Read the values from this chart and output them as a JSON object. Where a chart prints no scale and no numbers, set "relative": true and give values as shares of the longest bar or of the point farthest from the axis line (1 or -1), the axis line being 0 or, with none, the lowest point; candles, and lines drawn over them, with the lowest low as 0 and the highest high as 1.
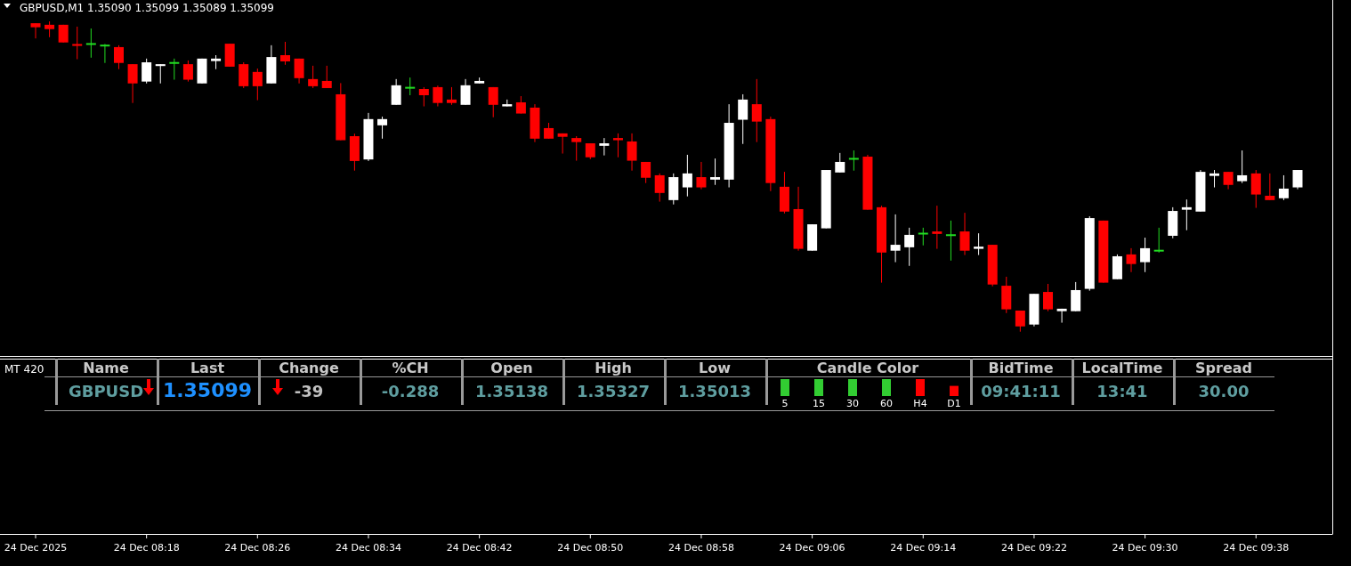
{
  "chart_data": [
    {
      "type": "candlestick",
      "title": "GBPUSD,M1  1.35090 1.35099 1.35089 1.35099",
      "relative": true,
      "categories": [
        "24 Dec 2025",
        null,
        null,
        null,
        null,
        null,
        null,
        null,
        "24 Dec 08:18",
        null,
        null,
        null,
        null,
        null,
        null,
        null,
        "24 Dec 08:26",
        null,
        null,
        null,
        null,
        null,
        null,
        null,
        "24 Dec 08:34",
        null,
        null,
        null,
        null,
        null,
        null,
        null,
        "24 Dec 08:42",
        null,
        null,
        null,
        null,
        null,
        null,
        null,
        "24 Dec 08:50",
        null,
        null,
        null,
        null,
        null,
        null,
        null,
        "24 Dec 08:58",
        null,
        null,
        null,
        null,
        null,
        null,
        null,
        "24 Dec 09:06",
        null,
        null,
        null,
        null,
        null,
        null,
        null,
        "24 Dec 09:14",
        null,
        null,
        null,
        null,
        null,
        null,
        null,
        "24 Dec 09:22",
        null,
        null,
        null,
        null,
        null,
        null,
        null,
        "24 Dec 09:30",
        null,
        null,
        null,
        null,
        null,
        null,
        null,
        "24 Dec 09:38",
        null,
        null,
        null
      ],
      "ohlc": [
        [
          0.994,
          0.994,
          0.945,
          0.981
        ],
        [
          0.989,
          1,
          0.949,
          0.975
        ],
        [
          0.989,
          0.989,
          0.932,
          0.932
        ],
        [
          0.927,
          0.983,
          0.878,
          0.921
        ],
        [
          0.927,
          0.977,
          0.883,
          0.927
        ],
        [
          0.922,
          0.927,
          0.866,
          0.922
        ],
        [
          0.917,
          0.923,
          0.846,
          0.866
        ],
        [
          0.862,
          0.862,
          0.737,
          0.8
        ],
        [
          0.806,
          0.88,
          0.8,
          0.868
        ],
        [
          0.856,
          0.862,
          0.8,
          0.862
        ],
        [
          0.866,
          0.88,
          0.812,
          0.866
        ],
        [
          0.862,
          0.874,
          0.806,
          0.812
        ],
        [
          0.8,
          0.88,
          0.8,
          0.88
        ],
        [
          0.872,
          0.891,
          0.846,
          0.88
        ],
        [
          0.928,
          0.928,
          0.854,
          0.854
        ],
        [
          0.862,
          0.868,
          0.785,
          0.791
        ],
        [
          0.837,
          0.848,
          0.746,
          0.791
        ],
        [
          0.8,
          0.923,
          0.8,
          0.885
        ],
        [
          0.891,
          0.934,
          0.86,
          0.871
        ],
        [
          0.88,
          0.88,
          0.8,
          0.817
        ],
        [
          0.814,
          0.857,
          0.785,
          0.791
        ],
        [
          0.808,
          0.857,
          0.785,
          0.785
        ],
        [
          0.765,
          0.801,
          0.617,
          0.617
        ],
        [
          0.63,
          0.638,
          0.519,
          0.55
        ],
        [
          0.555,
          0.705,
          0.55,
          0.685
        ],
        [
          0.665,
          0.693,
          0.622,
          0.685
        ],
        [
          0.731,
          0.814,
          0.731,
          0.794
        ],
        [
          0.786,
          0.819,
          0.762,
          0.786
        ],
        [
          0.782,
          0.788,
          0.726,
          0.762
        ],
        [
          0.788,
          0.793,
          0.726,
          0.737
        ],
        [
          0.748,
          0.788,
          0.731,
          0.737
        ],
        [
          0.731,
          0.814,
          0.731,
          0.794
        ],
        [
          0.8,
          0.819,
          0.8,
          0.808
        ],
        [
          0.788,
          0.788,
          0.691,
          0.731
        ],
        [
          0.726,
          0.748,
          0.726,
          0.733
        ],
        [
          0.739,
          0.759,
          0.703,
          0.703
        ],
        [
          0.722,
          0.733,
          0.611,
          0.622
        ],
        [
          0.656,
          0.673,
          0.622,
          0.622
        ],
        [
          0.639,
          0.639,
          0.574,
          0.628
        ],
        [
          0.624,
          0.63,
          0.551,
          0.611
        ],
        [
          0.607,
          0.607,
          0.556,
          0.562
        ],
        [
          0.599,
          0.624,
          0.568,
          0.607
        ],
        [
          0.624,
          0.639,
          0.562,
          0.617
        ],
        [
          0.613,
          0.639,
          0.519,
          0.551
        ],
        [
          0.547,
          0.547,
          0.479,
          0.496
        ],
        [
          0.504,
          0.51,
          0.419,
          0.447
        ],
        [
          0.424,
          0.51,
          0.41,
          0.498
        ],
        [
          0.465,
          0.57,
          0.436,
          0.51
        ],
        [
          0.498,
          0.547,
          0.459,
          0.465
        ],
        [
          0.49,
          0.558,
          0.473,
          0.498
        ],
        [
          0.49,
          0.733,
          0.465,
          0.673
        ],
        [
          0.683,
          0.765,
          0.605,
          0.748
        ],
        [
          0.733,
          0.814,
          0.611,
          0.677
        ],
        [
          0.685,
          0.693,
          0.453,
          0.479
        ],
        [
          0.467,
          0.515,
          0.381,
          0.387
        ],
        [
          0.395,
          0.467,
          0.261,
          0.267
        ],
        [
          0.261,
          0.346,
          0.261,
          0.346
        ],
        [
          0.333,
          0.521,
          0.333,
          0.521
        ],
        [
          0.513,
          0.576,
          0.513,
          0.547
        ],
        [
          0.557,
          0.584,
          0.519,
          0.557
        ],
        [
          0.564,
          0.57,
          0.393,
          0.393
        ],
        [
          0.401,
          0.406,
          0.158,
          0.255
        ],
        [
          0.261,
          0.378,
          0.224,
          0.28
        ],
        [
          0.272,
          0.335,
          0.212,
          0.312
        ],
        [
          0.316,
          0.335,
          0.278,
          0.316
        ],
        [
          0.323,
          0.406,
          0.267,
          0.315
        ],
        [
          0.311,
          0.358,
          0.229,
          0.311
        ],
        [
          0.323,
          0.383,
          0.247,
          0.261
        ],
        [
          0.267,
          0.317,
          0.247,
          0.274
        ],
        [
          0.28,
          0.28,
          0.146,
          0.152
        ],
        [
          0.148,
          0.177,
          0.06,
          0.072
        ],
        [
          0.068,
          0.068,
          0,
          0.017
        ],
        [
          0.023,
          0.122,
          0.017,
          0.122
        ],
        [
          0.128,
          0.154,
          0.066,
          0.072
        ],
        [
          0.066,
          0.074,
          0.029,
          0.074
        ],
        [
          0.066,
          0.16,
          0.066,
          0.134
        ],
        [
          0.138,
          0.372,
          0.132,
          0.366
        ],
        [
          0.358,
          0.358,
          0.158,
          0.158
        ],
        [
          0.169,
          0.249,
          0.169,
          0.243
        ],
        [
          0.249,
          0.269,
          0.192,
          0.218
        ],
        [
          0.224,
          0.303,
          0.192,
          0.269
        ],
        [
          0.261,
          0.335,
          0.255,
          0.261
        ],
        [
          0.309,
          0.401,
          0.301,
          0.389
        ],
        [
          0.393,
          0.426,
          0.327,
          0.401
        ],
        [
          0.387,
          0.521,
          0.387,
          0.515
        ],
        [
          0.502,
          0.521,
          0.465,
          0.51
        ],
        [
          0.515,
          0.515,
          0.459,
          0.473
        ],
        [
          0.485,
          0.584,
          0.479,
          0.504
        ],
        [
          0.51,
          0.521,
          0.399,
          0.442
        ],
        [
          0.438,
          0.51,
          0.424,
          0.424
        ],
        [
          0.43,
          0.504,
          0.424,
          0.461
        ],
        [
          0.465,
          0.521,
          0.459,
          0.521
        ]
      ],
      "colors": [
        "#ff0000",
        "#ff0000",
        "#ff0000",
        "#ff0000",
        "#22dd22",
        "#22dd22",
        "#ff0000",
        "#ff0000",
        "#ffffff",
        "#ffffff",
        "#22dd22",
        "#ff0000",
        "#ffffff",
        "#ffffff",
        "#ff0000",
        "#ff0000",
        "#ff0000",
        "#ffffff",
        "#ff0000",
        "#ff0000",
        "#ff0000",
        "#ff0000",
        "#ff0000",
        "#ff0000",
        "#ffffff",
        "#ffffff",
        "#ffffff",
        "#22dd22",
        "#ff0000",
        "#ff0000",
        "#ff0000",
        "#ffffff",
        "#ffffff",
        "#ff0000",
        "#ffffff",
        "#ff0000",
        "#ff0000",
        "#ff0000",
        "#ff0000",
        "#ff0000",
        "#ff0000",
        "#ffffff",
        "#ff0000",
        "#ff0000",
        "#ff0000",
        "#ff0000",
        "#ffffff",
        "#ffffff",
        "#ff0000",
        "#ffffff",
        "#ffffff",
        "#ffffff",
        "#ff0000",
        "#ff0000",
        "#ff0000",
        "#ff0000",
        "#ffffff",
        "#ffffff",
        "#ffffff",
        "#22dd22",
        "#ff0000",
        "#ff0000",
        "#ffffff",
        "#ffffff",
        "#22dd22",
        "#ff0000",
        "#22dd22",
        "#ff0000",
        "#ffffff",
        "#ff0000",
        "#ff0000",
        "#ff0000",
        "#ffffff",
        "#ff0000",
        "#ffffff",
        "#ffffff",
        "#ffffff",
        "#ff0000",
        "#ffffff",
        "#ff0000",
        "#ffffff",
        "#22dd22",
        "#ffffff",
        "#ffffff",
        "#ffffff",
        "#ffffff",
        "#ff0000",
        "#ffffff",
        "#ff0000",
        "#ff0000",
        "#ffffff",
        "#ffffff"
      ]
    },
    {
      "type": "other",
      "title": "MT 420",
      "categories": [
        "Name",
        "Last",
        "Change",
        "%CH",
        "Open",
        "High",
        "Low",
        "Candle Color",
        "BidTime",
        "LocalTime",
        "Spread"
      ],
      "value_labels": [
        "GBPUSD",
        "1.35099",
        "-39",
        "-0.288",
        "1.35138",
        "1.35327",
        "1.35013",
        null,
        "09:41:11",
        "13:41",
        "30.00"
      ],
      "colors": [
        "#5f9ea0",
        "#1e90ff",
        "#c0c0c0",
        "#5f9ea0",
        "#5f9ea0",
        "#5f9ea0",
        "#5f9ea0",
        null,
        "#5f9ea0",
        "#5f9ea0",
        "#5f9ea0"
      ]
    },
    {
      "type": "bar",
      "relative": true,
      "categories": [
        "5",
        "15",
        "30",
        "60",
        "H4",
        "D1"
      ],
      "values": [
        1,
        1,
        1,
        1,
        1,
        0.6
      ],
      "colors": [
        "#32cd32",
        "#32cd32",
        "#32cd32",
        "#32cd32",
        "#ff0000",
        "#ff0000"
      ]
    }
  ]
}
